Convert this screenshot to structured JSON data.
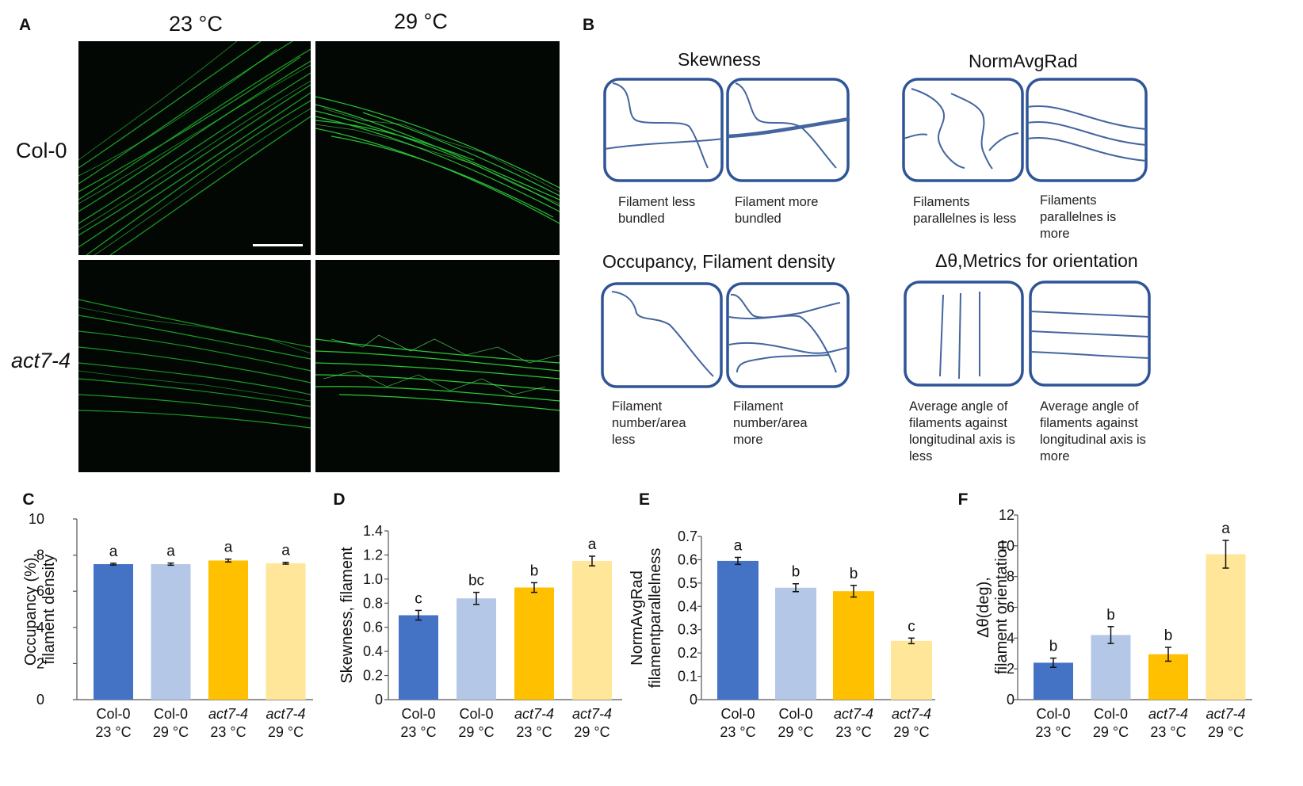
{
  "panelA": {
    "label": "A",
    "col_labels": [
      "23 °C",
      "29 °C"
    ],
    "row_labels": [
      "Col-0",
      "act7-4"
    ]
  },
  "panelB": {
    "label": "B",
    "titles": {
      "skewness": "Skewness",
      "normavgrad": "NormAvgRad",
      "occupancy": "Occupancy, Filament density",
      "orientation": "Δθ,Metrics  for orientation"
    },
    "captions": {
      "skew_less": [
        "Filament less",
        "bundled"
      ],
      "skew_more": [
        "Filament more",
        "bundled"
      ],
      "norm_less": [
        "Filaments",
        "parallelnes is less"
      ],
      "norm_more": [
        "Filaments",
        "parallelnes is",
        "more"
      ],
      "occ_less": [
        "Filament",
        "number/area",
        "less"
      ],
      "occ_more": [
        "Filament",
        "number/area",
        "more"
      ],
      "orient_less": [
        "Average angle of",
        "filaments against",
        "longitudinal axis is",
        "less"
      ],
      "orient_more": [
        "Average angle of",
        "filaments against",
        "longitudinal axis is",
        "more"
      ]
    }
  },
  "colors": {
    "col0_23": "#4472C4",
    "col0_29": "#B4C7E7",
    "act74_23": "#FFC000",
    "act74_29": "#FFE699",
    "schematic": "#2F5597",
    "filament_line": "#44659E"
  },
  "chart_data": [
    {
      "panel": "C",
      "type": "bar",
      "categories": [
        [
          "Col-0",
          "23 °C"
        ],
        [
          "Col-0",
          "29 °C"
        ],
        [
          "act7-4",
          "23 °C"
        ],
        [
          "act7-4",
          "29 °C"
        ]
      ],
      "values": [
        7.5,
        7.5,
        7.7,
        7.55
      ],
      "errors": [
        0.05,
        0.06,
        0.08,
        0.05
      ],
      "letters": [
        "a",
        "a",
        "a",
        "a"
      ],
      "ylabel": [
        "Occupancy (%),",
        "filament density"
      ],
      "ylim": [
        0,
        10
      ],
      "yticks": [
        "0",
        "2",
        "4",
        "6",
        "8",
        "10"
      ]
    },
    {
      "panel": "D",
      "type": "bar",
      "categories": [
        [
          "Col-0",
          "23 °C"
        ],
        [
          "Col-0",
          "29 °C"
        ],
        [
          "act7-4",
          "23 °C"
        ],
        [
          "act7-4",
          "29 °C"
        ]
      ],
      "values": [
        0.7,
        0.84,
        0.93,
        1.15
      ],
      "errors": [
        0.04,
        0.05,
        0.04,
        0.04
      ],
      "letters": [
        "c",
        "bc",
        "b",
        "a"
      ],
      "ylabel": [
        "Skewness, filament"
      ],
      "ylim": [
        0,
        1.4
      ],
      "yticks": [
        "0",
        "0.2",
        "0.4",
        "0.6",
        "0.8",
        "1.0",
        "1.2",
        "1.4"
      ]
    },
    {
      "panel": "E",
      "type": "bar",
      "categories": [
        [
          "Col-0",
          "23 °C"
        ],
        [
          "Col-0",
          "29 °C"
        ],
        [
          "act7-4",
          "23 °C"
        ],
        [
          "act7-4",
          "29 °C"
        ]
      ],
      "values": [
        0.595,
        0.48,
        0.465,
        0.252
      ],
      "errors": [
        0.015,
        0.017,
        0.025,
        0.012
      ],
      "letters": [
        "a",
        "b",
        "b",
        "c"
      ],
      "ylabel": [
        "NormAvgRad",
        "filamentparallelness"
      ],
      "ylim": [
        0,
        0.7
      ],
      "yticks": [
        "0",
        "0.1",
        "0.2",
        "0.3",
        "0.4",
        "0.5",
        "0.6",
        "0.7"
      ]
    },
    {
      "panel": "F",
      "type": "bar",
      "categories": [
        [
          "Col-0",
          "23 °C"
        ],
        [
          "Col-0",
          "29 °C"
        ],
        [
          "act7-4",
          "23 °C"
        ],
        [
          "act7-4",
          "29 °C"
        ]
      ],
      "values": [
        2.4,
        4.2,
        2.95,
        9.45
      ],
      "errors": [
        0.3,
        0.55,
        0.45,
        0.9
      ],
      "letters": [
        "b",
        "b",
        "b",
        "a"
      ],
      "ylabel": [
        "Δθ(deg),",
        "filament orientation"
      ],
      "ylim": [
        0,
        12
      ],
      "yticks": [
        "0",
        "2",
        "4",
        "6",
        "8",
        "10",
        "12"
      ]
    }
  ]
}
